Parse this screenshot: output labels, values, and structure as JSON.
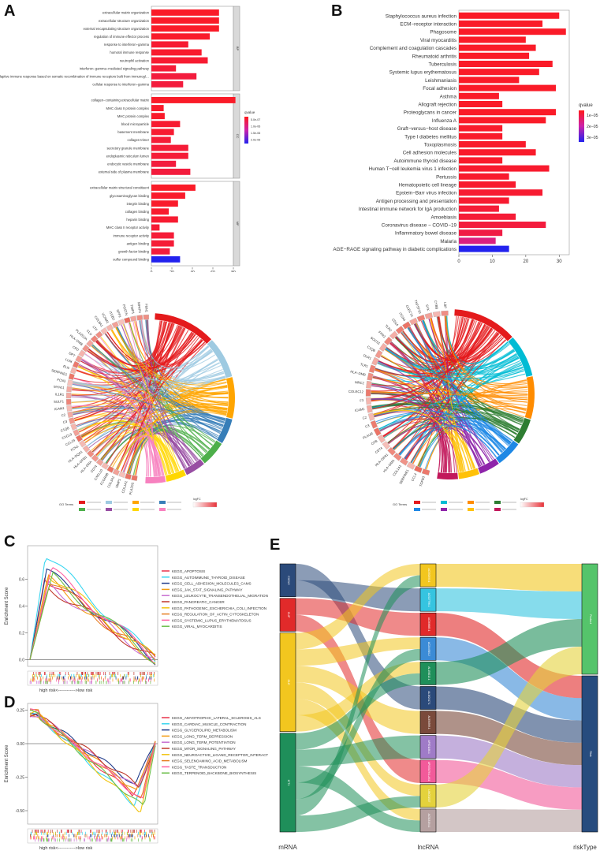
{
  "figure": {
    "panel_letters": [
      "A",
      "B",
      "C",
      "D",
      "E"
    ]
  },
  "chart_data": [
    {
      "id": "A",
      "type": "bar",
      "orientation": "horizontal",
      "title": "",
      "xlabel": "",
      "xlim": [
        0,
        80
      ],
      "xticks": [
        0,
        20,
        40,
        60,
        80
      ],
      "legend_title": "qvalue",
      "legend_labels": [
        "5.0e-07",
        "1.0e-06",
        "1.5e-06",
        "2.0e-06"
      ],
      "colors": {
        "low": "#ff1a1a",
        "high": "#2222ee"
      },
      "facets": [
        {
          "name": "BP",
          "categories": [
            "extracellular matrix organization",
            "extracellular structure organization",
            "external encapsulating structure organization",
            "regulation of immune effector process",
            "response to interferon−gamma",
            "humoral immune response",
            "neutrophil activation",
            "interferon−gamma−mediated signaling pathway",
            "adaptive immune response based on somatic recombination of immune receptors built from immunoglobulin superfamily domains",
            "cellular response to interferon−gamma"
          ],
          "values": [
            66,
            66,
            66,
            57,
            36,
            49,
            55,
            24,
            44,
            31
          ],
          "q": [
            0.05,
            0.05,
            0.05,
            0.06,
            0.08,
            0.07,
            0.08,
            0.1,
            0.12,
            0.12
          ]
        },
        {
          "name": "CC",
          "categories": [
            "collagen−containing extracellular matrix",
            "MHC class II protein complex",
            "MHC protein complex",
            "blood microparticle",
            "basement membrane",
            "collagen trimer",
            "secretory granule membrane",
            "endoplasmic reticulum lumen",
            "endocytic vesicle membrane",
            "external side of plasma membrane"
          ],
          "values": [
            82,
            12,
            13,
            28,
            22,
            19,
            36,
            36,
            24,
            38
          ],
          "q": [
            0.05,
            0.06,
            0.06,
            0.08,
            0.08,
            0.1,
            0.1,
            0.1,
            0.12,
            0.12
          ]
        },
        {
          "name": "MF",
          "categories": [
            "extracellular matrix structural constituent",
            "glycosaminoglycan binding",
            "integrin binding",
            "collagen binding",
            "heparin binding",
            "MHC class II receptor activity",
            "immune receptor activity",
            "antigen binding",
            "growth factor binding",
            "sulfur compound binding"
          ],
          "values": [
            43,
            33,
            26,
            17,
            26,
            8,
            22,
            22,
            18,
            28
          ],
          "q": [
            0.05,
            0.06,
            0.06,
            0.07,
            0.08,
            0.09,
            0.1,
            0.1,
            0.12,
            1.0
          ]
        }
      ]
    },
    {
      "id": "B",
      "type": "bar",
      "orientation": "horizontal",
      "title": "",
      "xlabel": "",
      "xlim": [
        0,
        33
      ],
      "xticks": [
        0,
        10,
        20,
        30
      ],
      "legend_title": "qvalue",
      "legend_labels": [
        "1e−05",
        "2e−05",
        "3e−05"
      ],
      "colors": {
        "low": "#ff1a1a",
        "high": "#2222ee"
      },
      "categories": [
        "Staphylococcus aureus infection",
        "ECM−receptor interaction",
        "Phagosome",
        "Viral myocarditis",
        "Complement and coagulation cascades",
        "Rheumatoid arthritis",
        "Tuberculosis",
        "Systemic lupus erythematosus",
        "Leishmaniasis",
        "Focal adhesion",
        "Asthma",
        "Allograft rejection",
        "Proteoglycans in cancer",
        "Influenza A",
        "Graft−versus−host disease",
        "Type I diabetes mellitus",
        "Toxoplasmosis",
        "Cell adhesion molecules",
        "Autoimmune thyroid disease",
        "Human T−cell leukemia virus 1 infection",
        "Pertussis",
        "Hematopoietic cell lineage",
        "Epstein−Barr virus infection",
        "Antigen processing and presentation",
        "Intestinal immune network for IgA production",
        "Amoebiasis",
        "Coronavirus disease − COVID−19",
        "Inflammatory bowel disease",
        "Malaria",
        "AGE−RAGE signaling pathway in diabetic complications"
      ],
      "values": [
        30,
        25,
        32,
        20,
        23,
        21,
        28,
        24,
        18,
        29,
        12,
        13,
        29,
        26,
        13,
        13,
        20,
        23,
        13,
        27,
        15,
        17,
        25,
        15,
        12,
        17,
        26,
        13,
        11,
        15
      ],
      "q": [
        0.05,
        0.05,
        0.05,
        0.05,
        0.05,
        0.05,
        0.05,
        0.05,
        0.05,
        0.05,
        0.05,
        0.05,
        0.05,
        0.05,
        0.06,
        0.06,
        0.06,
        0.06,
        0.06,
        0.07,
        0.07,
        0.07,
        0.08,
        0.08,
        0.1,
        0.1,
        0.12,
        0.15,
        0.35,
        1.0
      ]
    },
    {
      "id": "chord-left",
      "type": "chord",
      "legend_title": "GO Terms",
      "legend_scale_label": "logFC",
      "term_colors": [
        "#e41a1c",
        "#9ecae1",
        "#ffa500",
        "#377eb8",
        "#4daf4a",
        "#984ea3",
        "#ffd700",
        "#f781bf"
      ],
      "genes": [
        "PLA2G5",
        "COL1A1",
        "MMP1",
        "COL3A1",
        "FCGR3B",
        "CXCL10",
        "CD74",
        "HLA−DRA",
        "HLA−DPB1",
        "HLA−DQA1",
        "FCN1",
        "CCL19",
        "CXCL9",
        "C1QB",
        "C3",
        "C2",
        "ICAM1",
        "SULF1",
        "IL1R1",
        "MYH11",
        "FCN3",
        "SERPINE1",
        "ELN",
        "LUM",
        "DPT",
        "CFD",
        "HLA−DMB",
        "PLA2G2A",
        "CLU",
        "LTF",
        "COL8A1",
        "VCAM1",
        "ITGB2",
        "SPP1",
        "POSTN",
        "TIMP1",
        "MFAP4",
        "FBN1"
      ]
    },
    {
      "id": "chord-right",
      "type": "chord",
      "legend_title": "GO Terms",
      "legend_scale_label": "logFC",
      "term_colors": [
        "#e41a1c",
        "#00bcd4",
        "#ff8c00",
        "#2e7d32",
        "#1e88e5",
        "#8e24aa",
        "#ffc107",
        "#c2185b"
      ],
      "genes": [
        "TGFB3",
        "CCL4",
        "SERPINE1",
        "COL1A1",
        "HLA−DMA",
        "HLA−DPA1",
        "CD74",
        "CFB",
        "PLAUR",
        "C3",
        "C2",
        "ICAM1",
        "F3",
        "COLEC12",
        "MRC2",
        "HLA−DMB",
        "TLR1",
        "OLR1",
        "C1QB",
        "SOCS1",
        "FPR2",
        "TLR2",
        "CD14",
        "ITGA4",
        "CLEC7A",
        "TNFSF10",
        "SYK",
        "CYBB",
        "LBP"
      ]
    },
    {
      "id": "C",
      "type": "line",
      "title": "",
      "ylabel": "Enrichment Score",
      "xlabel": "high risk<------------>low risk",
      "ylim": [
        -0.05,
        0.85
      ],
      "yticks": [
        0.0,
        0.2,
        0.4,
        0.6
      ],
      "series": [
        {
          "name": "KEGG_APOPTOSIS",
          "color": "#e8334a",
          "peak": 0.62
        },
        {
          "name": "KEGG_AUTOIMMUNE_THYROID_DISEASE",
          "color": "#3ad6f0",
          "peak": 0.78
        },
        {
          "name": "KEGG_CELL_ADHESION_MOLECULES_CAMS",
          "color": "#1f3b8a",
          "peak": 0.66
        },
        {
          "name": "KEGG_JAK_STAT_SIGNALING_PATHWAY",
          "color": "#f39c12",
          "peak": 0.6
        },
        {
          "name": "KEGG_LEUKOCYTE_TRANSENDOTHELIAL_MIGRATION",
          "color": "#c86fd1",
          "peak": 0.57
        },
        {
          "name": "KEGG_PANCREATIC_CANCER",
          "color": "#c0392b",
          "peak": 0.55
        },
        {
          "name": "KEGG_PATHOGENIC_ESCHERICHIA_COLI_INFECTION",
          "color": "#f1c40f",
          "peak": 0.64
        },
        {
          "name": "KEGG_REGULATION_OF_ACTIN_CYTOSKELETON",
          "color": "#e67e22",
          "peak": 0.58
        },
        {
          "name": "KEGG_SYSTEMIC_LUPUS_ERYTHEMATOSUS",
          "color": "#ff5fa2",
          "peak": 0.67
        },
        {
          "name": "KEGG_VIRAL_MYOCARDITIS",
          "color": "#6dbf4a",
          "peak": 0.62
        }
      ]
    },
    {
      "id": "D",
      "type": "line",
      "title": "",
      "ylabel": "Enrichment Score",
      "xlabel": "high risk<------------>low risk",
      "ylim": [
        -0.6,
        0.3
      ],
      "yticks": [
        0.25,
        0.0,
        -0.25,
        -0.5
      ],
      "series": [
        {
          "name": "KEGG_AMYOTROPHIC_LATERAL_SCLEROSIS_ALS",
          "color": "#e8334a",
          "trough": -0.38
        },
        {
          "name": "KEGG_CARDIAC_MUSCLE_CONTRACTION",
          "color": "#3ad6f0",
          "trough": -0.45
        },
        {
          "name": "KEGG_GLYCEROLIPID_METABOLISM",
          "color": "#1f3b8a",
          "trough": -0.3
        },
        {
          "name": "KEGG_LONG_TERM_DEPRESSION",
          "color": "#f39c12",
          "trough": -0.36
        },
        {
          "name": "KEGG_LONG_TERM_POTENTIATION",
          "color": "#c86fd1",
          "trough": -0.34
        },
        {
          "name": "KEGG_MTOR_SIGNALING_PATHWAY",
          "color": "#c0392b",
          "trough": -0.32
        },
        {
          "name": "KEGG_NEUROACTIVE_LIGAND_RECEPTOR_INTERACTION",
          "color": "#f1c40f",
          "trough": -0.5
        },
        {
          "name": "KEGG_SELENOAMINO_ACID_METABOLISM",
          "color": "#e67e22",
          "trough": -0.4
        },
        {
          "name": "KEGG_TASTE_TRANSDUCTION",
          "color": "#ff5fa2",
          "trough": -0.42
        },
        {
          "name": "KEGG_TERPENOID_BACKBONE_BIOSYNTHESIS",
          "color": "#6dbf4a",
          "trough": -0.48
        }
      ]
    },
    {
      "id": "E",
      "type": "sankey",
      "axis_labels": [
        "mRNA",
        "lncRNA",
        "riskType"
      ],
      "mrna": [
        {
          "name": "CXCL9",
          "color": "#2b4a7a",
          "weight": 2
        },
        {
          "name": "CLIP",
          "color": "#e12a2a",
          "weight": 2
        },
        {
          "name": "OLE",
          "color": "#f2c61f",
          "weight": 6
        },
        {
          "name": "ICT1",
          "color": "#1f8f5a",
          "weight": 6
        }
      ],
      "lncrna": [
        {
          "name": "AC092353.1",
          "color": "#f2c61f"
        },
        {
          "name": "AC027796.1",
          "color": "#35c4e0"
        },
        {
          "name": "AC066683.1",
          "color": "#e12a2a"
        },
        {
          "name": "AC244910.2",
          "color": "#3b8bd6"
        },
        {
          "name": "AL158212.1",
          "color": "#1f8f5a"
        },
        {
          "name": "AL162417.1",
          "color": "#2b4a7a"
        },
        {
          "name": "AL356599.1",
          "color": "#7a4a3b"
        },
        {
          "name": "AP001160.1",
          "color": "#9f7bc7"
        },
        {
          "name": "AP003178.1-AS1",
          "color": "#f25a9a"
        },
        {
          "name": "LINC01527",
          "color": "#e4d23c"
        },
        {
          "name": "AC013154.1",
          "color": "#b5a0a0"
        }
      ],
      "risk": [
        {
          "name": "Protect",
          "color": "#55c46b"
        },
        {
          "name": "Risk",
          "color": "#274c7e"
        }
      ],
      "links_mrna_lnc": [
        [
          0,
          5
        ],
        [
          0,
          1
        ],
        [
          1,
          2
        ],
        [
          1,
          8
        ],
        [
          2,
          0
        ],
        [
          2,
          3
        ],
        [
          2,
          6
        ],
        [
          2,
          9
        ],
        [
          2,
          10
        ],
        [
          2,
          4
        ],
        [
          3,
          4
        ],
        [
          3,
          7
        ],
        [
          3,
          10
        ],
        [
          3,
          3
        ],
        [
          3,
          0
        ],
        [
          3,
          9
        ]
      ],
      "links_lnc_risk": [
        [
          0,
          0
        ],
        [
          1,
          0
        ],
        [
          2,
          1
        ],
        [
          3,
          1
        ],
        [
          4,
          0
        ],
        [
          5,
          1
        ],
        [
          6,
          1
        ],
        [
          7,
          1
        ],
        [
          8,
          1
        ],
        [
          9,
          0
        ],
        [
          10,
          1
        ]
      ]
    }
  ]
}
